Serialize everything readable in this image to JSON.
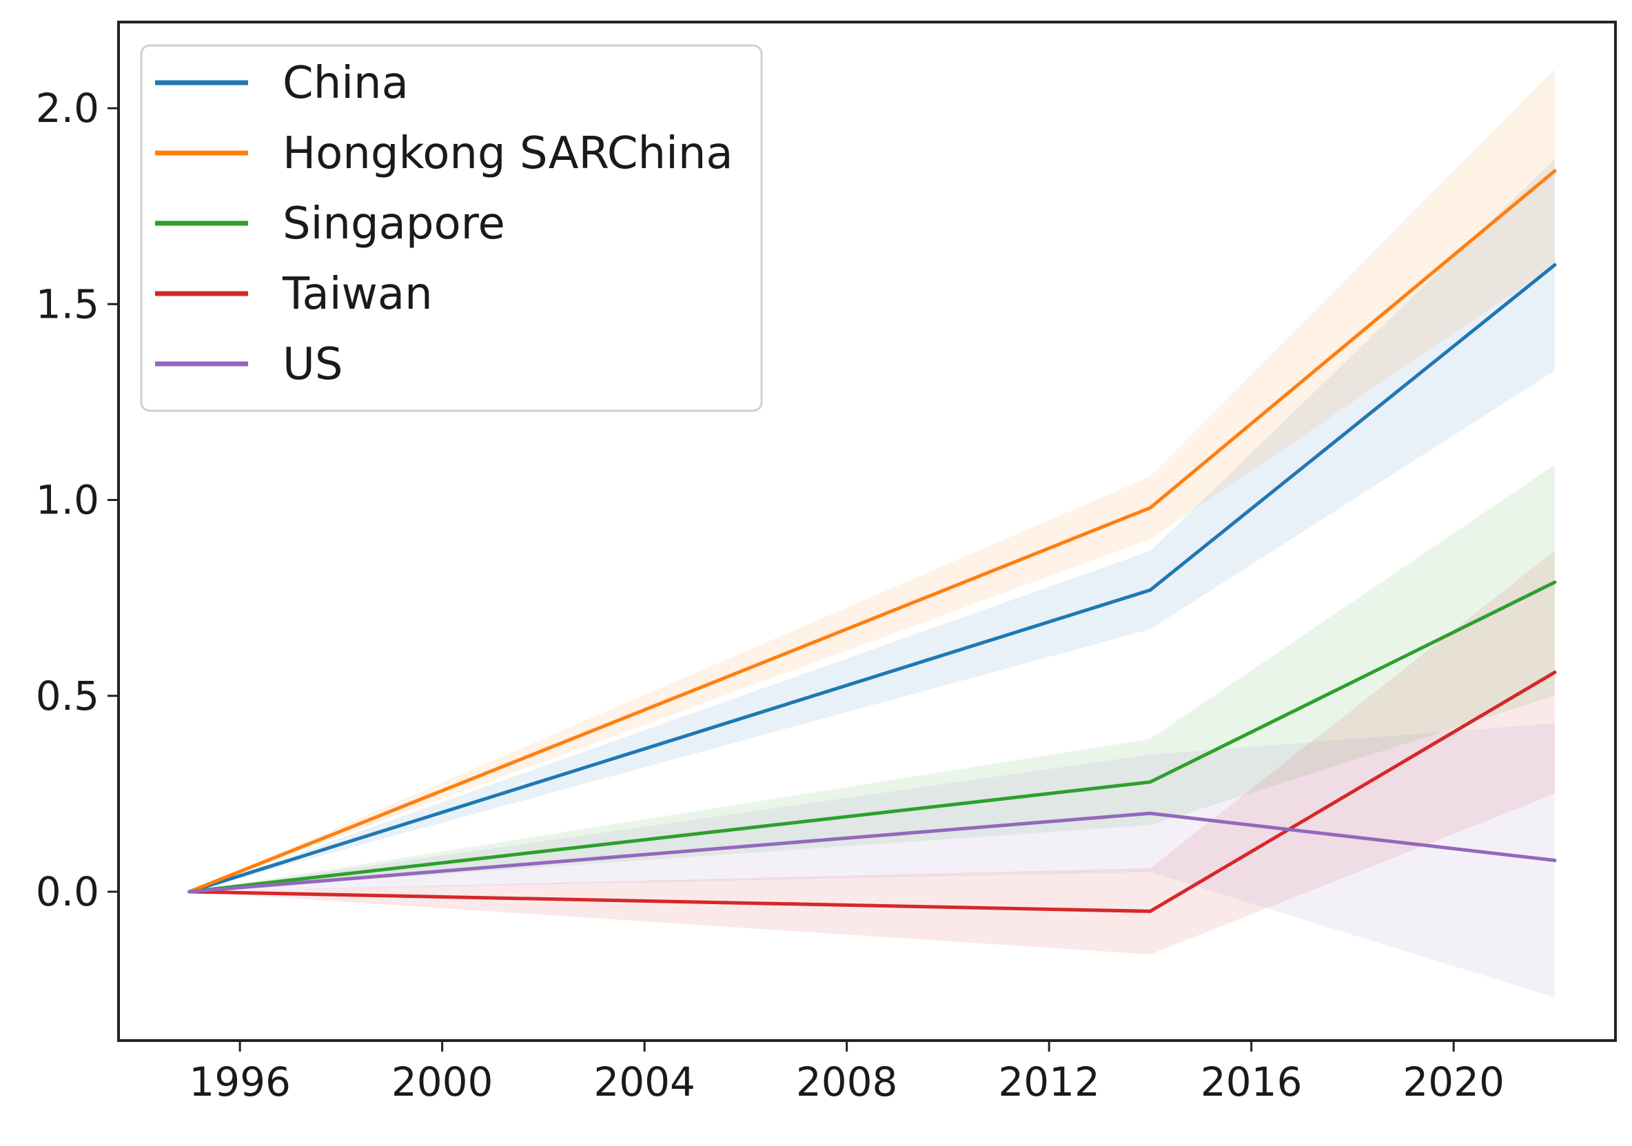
{
  "chart_data": {
    "type": "line",
    "title": "",
    "xlabel": "",
    "ylabel": "",
    "xlim": [
      1993.6,
      2023.2
    ],
    "ylim": [
      -0.38,
      2.22
    ],
    "xticks": [
      1996,
      2000,
      2004,
      2008,
      2012,
      2016,
      2020
    ],
    "xtick_labels": [
      "1996",
      "2000",
      "2004",
      "2008",
      "2012",
      "2016",
      "2020"
    ],
    "yticks": [
      0.0,
      0.5,
      1.0,
      1.5,
      2.0
    ],
    "ytick_labels": [
      "0.0",
      "0.5",
      "1.0",
      "1.5",
      "2.0"
    ],
    "legend_position": "top-left",
    "x": [
      1995,
      2014,
      2022
    ],
    "series": [
      {
        "name": "China",
        "color": "#1f77b4",
        "values": [
          0.0,
          0.77,
          1.6
        ],
        "lower": [
          0.0,
          0.67,
          1.33
        ],
        "upper": [
          0.0,
          0.87,
          1.87
        ]
      },
      {
        "name": "Hongkong SARChina",
        "color": "#ff7f0e",
        "values": [
          0.0,
          0.98,
          1.84
        ],
        "lower": [
          0.0,
          0.9,
          1.6
        ],
        "upper": [
          0.0,
          1.06,
          2.1
        ]
      },
      {
        "name": "Singapore",
        "color": "#2ca02c",
        "values": [
          0.0,
          0.28,
          0.79
        ],
        "lower": [
          0.0,
          0.17,
          0.5
        ],
        "upper": [
          0.0,
          0.39,
          1.09
        ]
      },
      {
        "name": "Taiwan",
        "color": "#d62728",
        "values": [
          0.0,
          -0.05,
          0.56
        ],
        "lower": [
          0.0,
          -0.16,
          0.25
        ],
        "upper": [
          0.0,
          0.06,
          0.87
        ]
      },
      {
        "name": "US",
        "color": "#9467bd",
        "values": [
          0.0,
          0.2,
          0.08
        ],
        "lower": [
          0.0,
          0.05,
          -0.27
        ],
        "upper": [
          0.0,
          0.35,
          0.43
        ]
      }
    ]
  }
}
